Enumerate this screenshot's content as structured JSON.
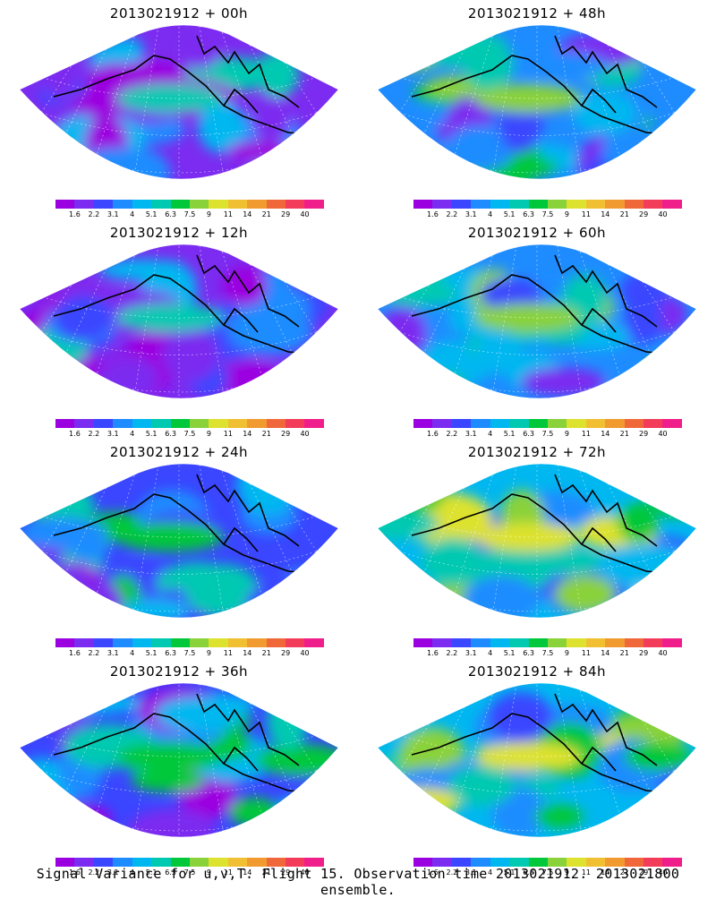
{
  "panels": [
    {
      "title": "2013021912 + 00h",
      "intensity": 0.15
    },
    {
      "title": "2013021912 + 12h",
      "intensity": 0.25
    },
    {
      "title": "2013021912 + 24h",
      "intensity": 0.35
    },
    {
      "title": "2013021912 + 36h",
      "intensity": 0.45
    },
    {
      "title": "2013021912 + 48h",
      "intensity": 0.55
    },
    {
      "title": "2013021912 + 60h",
      "intensity": 0.65
    },
    {
      "title": "2013021912 + 72h",
      "intensity": 0.78
    },
    {
      "title": "2013021912 + 84h",
      "intensity": 0.85
    }
  ],
  "colorbar": {
    "labels": [
      "1.6",
      "2.2",
      "3.1",
      "4",
      "5.1",
      "6.3",
      "7.5",
      "9",
      "11",
      "14",
      "21",
      "29",
      "40"
    ],
    "colors": [
      "#9b00e0",
      "#7b2cf0",
      "#3a46ff",
      "#1e8cff",
      "#00b7f0",
      "#00c9b2",
      "#00c83a",
      "#8ad23a",
      "#dde22e",
      "#f0c032",
      "#f09a30",
      "#f0683a",
      "#f23c5a",
      "#f01e8a"
    ]
  },
  "footer": "Signal Variance for u,v,T. Flight 15. Observation time 2013021912. 2013021800 ensemble."
}
